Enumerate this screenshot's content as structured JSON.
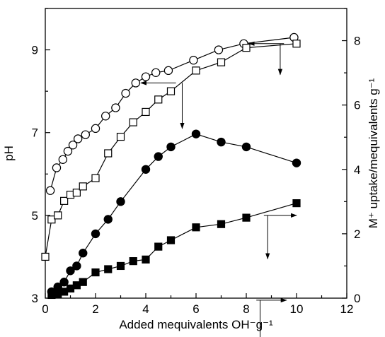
{
  "chart_data": {
    "type": "line",
    "xlabel": "Added mequivalents OH⁻g⁻¹",
    "ylabel": "pH",
    "y2label": "M⁺ uptake/mequivalents g⁻¹",
    "xlim": [
      0,
      12
    ],
    "ylim": [
      3,
      10
    ],
    "y2lim": [
      0,
      9
    ],
    "xticks": [
      "0",
      "2",
      "4",
      "6",
      "8",
      "10",
      "12"
    ],
    "yticks": [
      "3",
      "5",
      "7",
      "9"
    ],
    "y2ticks": [
      "0",
      "2",
      "4",
      "6",
      "8"
    ],
    "grid": false,
    "series": [
      {
        "marker": "open-circle",
        "axis": "left",
        "x": [
          0.2,
          0.45,
          0.7,
          0.9,
          1.1,
          1.3,
          1.6,
          2.0,
          2.4,
          2.8,
          3.2,
          3.6,
          4.0,
          4.4,
          4.9,
          5.9,
          6.9,
          7.9,
          9.9
        ],
        "y": [
          5.6,
          6.15,
          6.35,
          6.55,
          6.7,
          6.85,
          6.95,
          7.1,
          7.4,
          7.6,
          7.95,
          8.2,
          8.35,
          8.45,
          8.5,
          8.75,
          9.0,
          9.15,
          9.3
        ]
      },
      {
        "marker": "open-square",
        "axis": "left",
        "x": [
          0.0,
          0.25,
          0.5,
          0.75,
          1.0,
          1.25,
          1.5,
          2.0,
          2.5,
          3.0,
          3.5,
          4.0,
          4.5,
          5.0,
          6.0,
          7.0,
          8.0,
          10.0
        ],
        "y": [
          4.0,
          4.9,
          5.0,
          5.35,
          5.5,
          5.55,
          5.7,
          5.9,
          6.5,
          6.9,
          7.25,
          7.5,
          7.8,
          8.0,
          8.5,
          8.7,
          9.05,
          9.15
        ]
      },
      {
        "marker": "filled-circle",
        "axis": "right",
        "x": [
          0.25,
          0.5,
          0.75,
          1.0,
          1.25,
          1.5,
          2.0,
          2.5,
          3.0,
          4.0,
          4.5,
          5.0,
          6.0,
          7.0,
          8.0,
          10.0
        ],
        "y": [
          0.2,
          0.35,
          0.5,
          0.85,
          1.0,
          1.4,
          2.0,
          2.45,
          3.0,
          4.0,
          4.4,
          4.7,
          5.1,
          4.85,
          4.7,
          4.2
        ]
      },
      {
        "marker": "filled-square",
        "axis": "right",
        "x": [
          0.25,
          0.5,
          0.75,
          1.0,
          1.25,
          1.5,
          2.0,
          2.5,
          3.0,
          3.5,
          4.0,
          4.5,
          5.0,
          6.0,
          7.0,
          8.0,
          10.0
        ],
        "y": [
          0.1,
          0.12,
          0.2,
          0.3,
          0.4,
          0.5,
          0.8,
          0.9,
          1.0,
          1.15,
          1.2,
          1.6,
          1.8,
          2.2,
          2.3,
          2.5,
          2.95
        ]
      }
    ],
    "annotations": [
      {
        "type": "arrow",
        "points_to": "left",
        "series": "open-circle",
        "x_from": 9.5,
        "x_to": 8.1,
        "y": 9.15
      },
      {
        "type": "arrow",
        "points_to": "down",
        "series": "open-circle",
        "x": 9.35,
        "y_from": 9.15,
        "y_to": 8.4
      },
      {
        "type": "arrow",
        "points_to": "left",
        "series": "open-square",
        "x_from": 5.2,
        "x_to": 3.8,
        "y": 8.2
      },
      {
        "type": "arrow",
        "points_to": "down",
        "series": "open-square",
        "x": 5.45,
        "y_from": 8.2,
        "y_to": 7.1
      },
      {
        "type": "arrow",
        "points_to": "right",
        "series": "filled-circle",
        "x_from": 8.7,
        "x_to": 10.0,
        "y": 5.0
      },
      {
        "type": "arrow",
        "points_to": "down",
        "series": "filled-circle",
        "x": 8.85,
        "y_from": 5.0,
        "y_to": 3.95
      },
      {
        "type": "arrow",
        "points_to": "right",
        "series": "filled-square",
        "x_from": 8.4,
        "x_to": 9.6,
        "y": 2.95
      },
      {
        "type": "arrow",
        "points_to": "down",
        "series": "filled-square",
        "x": 8.55,
        "y_from": 2.95,
        "y_to": 1.7
      }
    ]
  },
  "colors": {
    "ink": "#000000",
    "background": "#ffffff"
  }
}
